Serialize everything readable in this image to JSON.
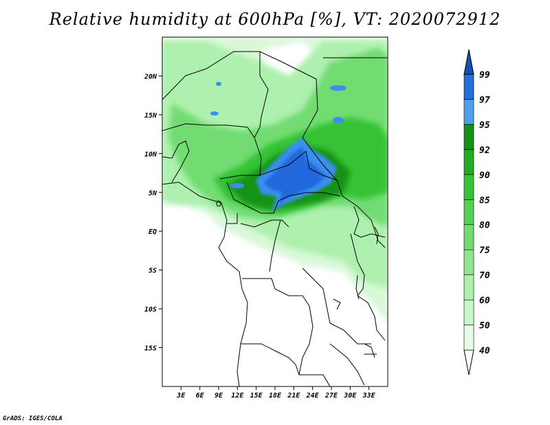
{
  "title": "Relative humidity at 600hPa [%], VT: 2020072912",
  "credit": "GrADS: IGES/COLA",
  "map": {
    "lon_range": [
      0,
      36
    ],
    "lat_range": [
      -20,
      25
    ],
    "lat_ticks": [
      "20N",
      "15N",
      "10N",
      "5N",
      "EQ",
      "5S",
      "10S",
      "15S"
    ],
    "lat_tick_values": [
      20,
      15,
      10,
      5,
      0,
      -5,
      -10,
      -15
    ],
    "lon_ticks": [
      "3E",
      "6E",
      "9E",
      "12E",
      "15E",
      "18E",
      "21E",
      "24E",
      "27E",
      "30E",
      "33E"
    ],
    "lon_tick_values": [
      3,
      6,
      9,
      12,
      15,
      18,
      21,
      24,
      27,
      30,
      33
    ]
  },
  "colorbar": {
    "labels": [
      "40",
      "50",
      "60",
      "70",
      "75",
      "80",
      "85",
      "90",
      "92",
      "95",
      "97",
      "99"
    ],
    "colors": [
      "#ffffff",
      "#e6fde6",
      "#c8f7c8",
      "#aef0ae",
      "#90e690",
      "#72dc72",
      "#53d253",
      "#36c336",
      "#1fae1f",
      "#139213",
      "#50a0f0",
      "#2070e0",
      "#1450b4"
    ]
  }
}
